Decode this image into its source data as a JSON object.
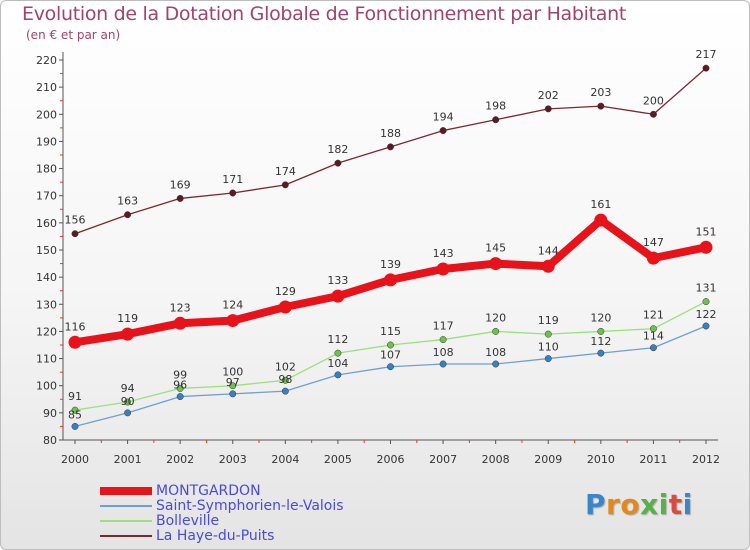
{
  "chart_data": {
    "type": "line",
    "title": "Evolution de la Dotation Globale de Fonctionnement par Habitant",
    "subtitle": "(en € et par an)",
    "xlabel": "",
    "ylabel": "",
    "ylim": [
      80,
      220
    ],
    "yticks": [
      80,
      90,
      100,
      110,
      120,
      130,
      140,
      150,
      160,
      170,
      180,
      190,
      200,
      210,
      220
    ],
    "categories": [
      "2000",
      "2001",
      "2002",
      "2003",
      "2004",
      "2005",
      "2006",
      "2007",
      "2008",
      "2009",
      "2010",
      "2011",
      "2012"
    ],
    "grid": false,
    "legend_position": "bottom-left",
    "series": [
      {
        "name": "MONTGARDON",
        "color": "#e8121a",
        "marker": "#e8121a",
        "values": [
          116,
          119,
          123,
          124,
          129,
          133,
          139,
          143,
          145,
          144,
          161,
          147,
          151
        ]
      },
      {
        "name": "Saint-Symphorien-le-Valois",
        "color": "#6f9fd0",
        "marker": "#3a7fc4",
        "values": [
          85,
          90,
          96,
          97,
          98,
          104,
          107,
          108,
          108,
          110,
          112,
          114,
          122
        ]
      },
      {
        "name": "Bolleville",
        "color": "#9be07a",
        "marker": "#6cc24a",
        "values": [
          91,
          94,
          99,
          100,
          102,
          112,
          115,
          117,
          120,
          119,
          120,
          121,
          131
        ]
      },
      {
        "name": "La Haye-du-Puits",
        "color": "#7a2830",
        "marker": "#5e1a22",
        "values": [
          156,
          163,
          169,
          171,
          174,
          182,
          188,
          194,
          198,
          202,
          203,
          200,
          217
        ]
      }
    ]
  },
  "logo": {
    "letters": [
      "P",
      "r",
      "o",
      "x",
      "i",
      "t",
      "i"
    ]
  }
}
